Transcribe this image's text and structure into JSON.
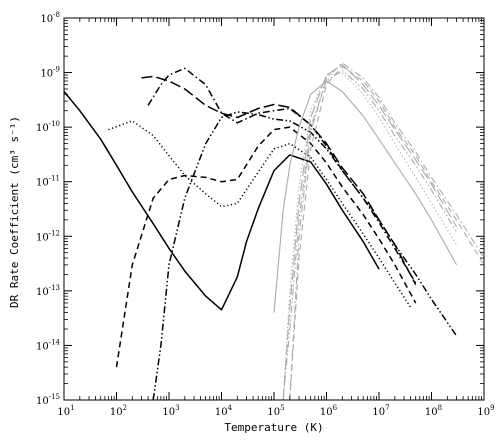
{
  "chart_data": {
    "type": "line",
    "title": "",
    "xlabel": "Temperature (K)",
    "ylabel": "DR Rate Coefficient (cm³ s⁻¹)",
    "x_scale": "log",
    "y_scale": "log",
    "xlim": [
      10,
      1000000000
    ],
    "ylim": [
      1e-15,
      1e-08
    ],
    "grid": false,
    "legend": "none",
    "x_tick_labels": [
      {
        "base": "10",
        "exp": "1"
      },
      {
        "base": "10",
        "exp": "2"
      },
      {
        "base": "10",
        "exp": "3"
      },
      {
        "base": "10",
        "exp": "4"
      },
      {
        "base": "10",
        "exp": "5"
      },
      {
        "base": "10",
        "exp": "6"
      },
      {
        "base": "10",
        "exp": "7"
      },
      {
        "base": "10",
        "exp": "8"
      },
      {
        "base": "10",
        "exp": "9"
      }
    ],
    "y_tick_labels": [
      {
        "base": "10",
        "exp": "-15"
      },
      {
        "base": "10",
        "exp": "-14"
      },
      {
        "base": "10",
        "exp": "-13"
      },
      {
        "base": "10",
        "exp": "-12"
      },
      {
        "base": "10",
        "exp": "-11"
      },
      {
        "base": "10",
        "exp": "-10"
      },
      {
        "base": "10",
        "exp": "-9"
      },
      {
        "base": "10",
        "exp": "-8"
      }
    ],
    "series": [
      {
        "style": "solid",
        "color": "#000000",
        "x": [
          10,
          20,
          50,
          100,
          200,
          500,
          1000,
          2000,
          5000,
          10000,
          20000,
          30000,
          50000,
          100000,
          200000,
          500000,
          1000000,
          2000000,
          5000000,
          10000000
        ],
        "y": [
          4.5e-10,
          2e-10,
          6e-11,
          2e-11,
          6.5e-12,
          1.7e-12,
          6e-13,
          2.3e-13,
          8e-14,
          4.5e-14,
          1.8e-13,
          8e-13,
          3.2e-12,
          1.6e-11,
          3.1e-11,
          2.3e-11,
          9e-12,
          3e-12,
          8e-13,
          2.5e-13
        ]
      },
      {
        "style": "dotted",
        "color": "#000000",
        "x": [
          70,
          200,
          500,
          1000,
          2000,
          5000,
          10000,
          20000,
          50000,
          100000,
          200000,
          500000,
          1000000,
          2000000,
          5000000,
          10000000,
          20000000,
          40000000
        ],
        "y": [
          9e-11,
          1.3e-10,
          7e-11,
          3e-11,
          1.3e-11,
          6e-12,
          3.5e-12,
          4e-12,
          1.5e-11,
          4e-11,
          5e-11,
          2.8e-11,
          1.1e-11,
          4e-12,
          1.1e-12,
          4e-13,
          1.4e-13,
          5e-14
        ]
      },
      {
        "style": "dashed",
        "color": "#000000",
        "x": [
          100,
          200,
          500,
          1000,
          2000,
          5000,
          10000,
          20000,
          50000,
          100000,
          200000,
          500000,
          1000000,
          2000000,
          5000000,
          10000000,
          20000000,
          50000000
        ],
        "y": [
          4e-15,
          3e-13,
          5e-12,
          1.1e-11,
          1.3e-11,
          1.2e-11,
          1e-11,
          1.1e-11,
          4.5e-11,
          9e-11,
          1e-10,
          5e-11,
          2.2e-11,
          8e-12,
          2.5e-12,
          9e-13,
          3e-13,
          6e-14
        ]
      },
      {
        "style": "dash-dot",
        "color": "#000000",
        "x": [
          400,
          700,
          1000,
          2000,
          5000,
          10000,
          20000,
          50000,
          100000,
          200000,
          500000,
          1000000,
          2000000,
          5000000,
          10000000,
          20000000,
          50000000
        ],
        "y": [
          2.5e-10,
          6e-10,
          9e-10,
          1.2e-09,
          6e-10,
          1.8e-10,
          1.2e-10,
          1.8e-10,
          2e-10,
          2.2e-10,
          1.1e-10,
          4.5e-11,
          1.6e-11,
          5e-12,
          1.8e-12,
          6e-13,
          1.4e-13
        ]
      },
      {
        "style": "long-dash",
        "color": "#000000",
        "x": [
          300,
          500,
          1000,
          2000,
          5000,
          10000,
          20000,
          50000,
          100000,
          200000,
          500000,
          1000000,
          2000000,
          5000000,
          10000000,
          20000000,
          50000000
        ],
        "y": [
          8e-10,
          8.5e-10,
          7e-10,
          5e-10,
          2.5e-10,
          1.8e-10,
          1.5e-10,
          2.2e-10,
          2.6e-10,
          2.3e-10,
          1.1e-10,
          5e-11,
          1.8e-11,
          6e-12,
          2e-12,
          7e-13,
          1.3e-13
        ]
      },
      {
        "style": "dash-dot-dot",
        "color": "#000000",
        "x": [
          500,
          700,
          1000,
          2000,
          5000,
          10000,
          20000,
          50000,
          100000,
          200000,
          500000,
          1000000,
          2000000,
          5000000,
          10000000,
          20000000,
          50000000,
          100000000,
          300000000
        ],
        "y": [
          1e-15,
          1e-14,
          3e-13,
          5e-12,
          5e-11,
          1.5e-10,
          1.9e-10,
          1.7e-10,
          1.4e-10,
          1.3e-10,
          8e-11,
          4e-11,
          1.6e-11,
          5e-12,
          2e-12,
          7e-13,
          2e-13,
          7e-14,
          1.5e-14
        ]
      },
      {
        "style": "solid",
        "color": "#aaaaaa",
        "x": [
          100000,
          150000,
          200000,
          300000,
          500000,
          1000000,
          2000000,
          5000000,
          10000000,
          20000000,
          50000000,
          100000000,
          300000000
        ],
        "y": [
          4e-14,
          3e-12,
          2e-11,
          1e-10,
          4e-10,
          7e-10,
          4.5e-10,
          1.6e-10,
          6e-11,
          2.2e-11,
          6e-12,
          2e-12,
          3e-13
        ]
      },
      {
        "style": "dotted",
        "color": "#aaaaaa",
        "x": [
          150000,
          200000,
          300000,
          500000,
          1000000,
          2000000,
          5000000,
          10000000,
          20000000,
          50000000,
          100000000,
          300000000
        ],
        "y": [
          1e-15,
          1e-13,
          8e-12,
          2e-10,
          9e-10,
          1e-09,
          4e-10,
          1.5e-10,
          5e-11,
          1.2e-11,
          4e-12,
          7e-13
        ]
      },
      {
        "style": "dashed",
        "color": "#aaaaaa",
        "x": [
          200000,
          300000,
          500000,
          1000000,
          2000000,
          5000000,
          10000000,
          20000000,
          50000000,
          100000000,
          300000000,
          1000000000
        ],
        "y": [
          1e-15,
          4e-13,
          4e-11,
          6e-10,
          1.3e-09,
          7e-10,
          3e-10,
          1e-10,
          3e-11,
          1e-11,
          2e-12,
          3e-13
        ]
      },
      {
        "style": "dash-dot",
        "color": "#aaaaaa",
        "x": [
          200000,
          300000,
          500000,
          1000000,
          2000000,
          5000000,
          10000000,
          20000000,
          50000000,
          100000000,
          300000000,
          1000000000
        ],
        "y": [
          1e-15,
          1e-12,
          8e-11,
          8e-10,
          1.5e-09,
          8e-10,
          3.5e-10,
          1.2e-10,
          3.5e-11,
          1.2e-11,
          2.5e-12,
          4e-13
        ]
      },
      {
        "style": "long-dash",
        "color": "#aaaaaa",
        "x": [
          150000,
          200000,
          300000,
          500000,
          1000000,
          2000000,
          5000000,
          10000000,
          20000000,
          50000000,
          100000000,
          300000000
        ],
        "y": [
          1e-15,
          5e-14,
          4e-12,
          1.5e-10,
          9e-10,
          1.4e-09,
          6e-10,
          2.5e-10,
          9e-11,
          2.5e-11,
          9e-12,
          1.5e-12
        ]
      },
      {
        "style": "dash-dot-dot",
        "color": "#aaaaaa",
        "x": [
          150000,
          200000,
          300000,
          500000,
          1000000,
          2000000,
          5000000,
          10000000,
          20000000,
          50000000,
          100000000,
          300000000
        ],
        "y": [
          1e-15,
          2e-14,
          2e-12,
          1e-10,
          7e-10,
          1.1e-09,
          5e-10,
          2e-10,
          7e-11,
          2e-11,
          7e-12,
          1.2e-12
        ]
      }
    ]
  }
}
